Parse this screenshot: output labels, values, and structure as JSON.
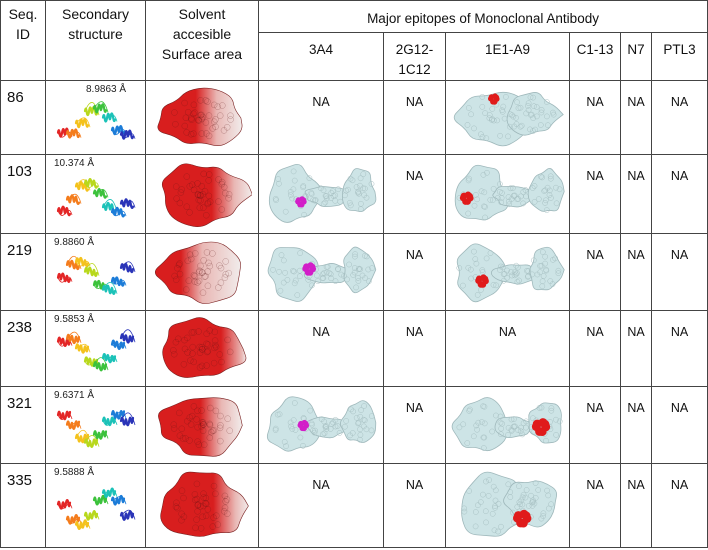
{
  "headers": {
    "seq_id": "Seq.\nID",
    "secondary": "Secondary structure",
    "sasa": "Solvent accesible Surface area",
    "epitopes": "Major epitopes of Monoclonal Antibody",
    "antibodies": [
      "3A4",
      "2G12-1C12",
      "1E1-A9",
      "C1-13",
      "N7",
      "PTL3"
    ]
  },
  "rows": [
    {
      "id": "86",
      "distance": "8.9863 Å",
      "cells": [
        "NA",
        "NA",
        "img",
        "NA",
        "NA",
        "NA"
      ]
    },
    {
      "id": "103",
      "distance": "10.374 Å",
      "cells": [
        "img",
        "NA",
        "img",
        "NA",
        "NA",
        "NA"
      ]
    },
    {
      "id": "219",
      "distance": "9.8860 Å",
      "cells": [
        "img",
        "NA",
        "img",
        "NA",
        "NA",
        "NA"
      ]
    },
    {
      "id": "238",
      "distance": "9.5853 Å",
      "cells": [
        "NA",
        "NA",
        "NA",
        "NA",
        "NA",
        "NA"
      ]
    },
    {
      "id": "321",
      "distance": "9.6371 Å",
      "cells": [
        "img",
        "NA",
        "img",
        "NA",
        "NA",
        "NA"
      ]
    },
    {
      "id": "335",
      "distance": "9.5888 Å",
      "cells": [
        "NA",
        "NA",
        "img",
        "NA",
        "NA",
        "NA"
      ]
    }
  ],
  "colors": {
    "surface": "#cde4e6",
    "epitope_red": "#e01b1b",
    "epitope_magenta": "#d21ec8",
    "sasa_red": "#d81e1e",
    "sasa_white": "#f1eceb"
  }
}
